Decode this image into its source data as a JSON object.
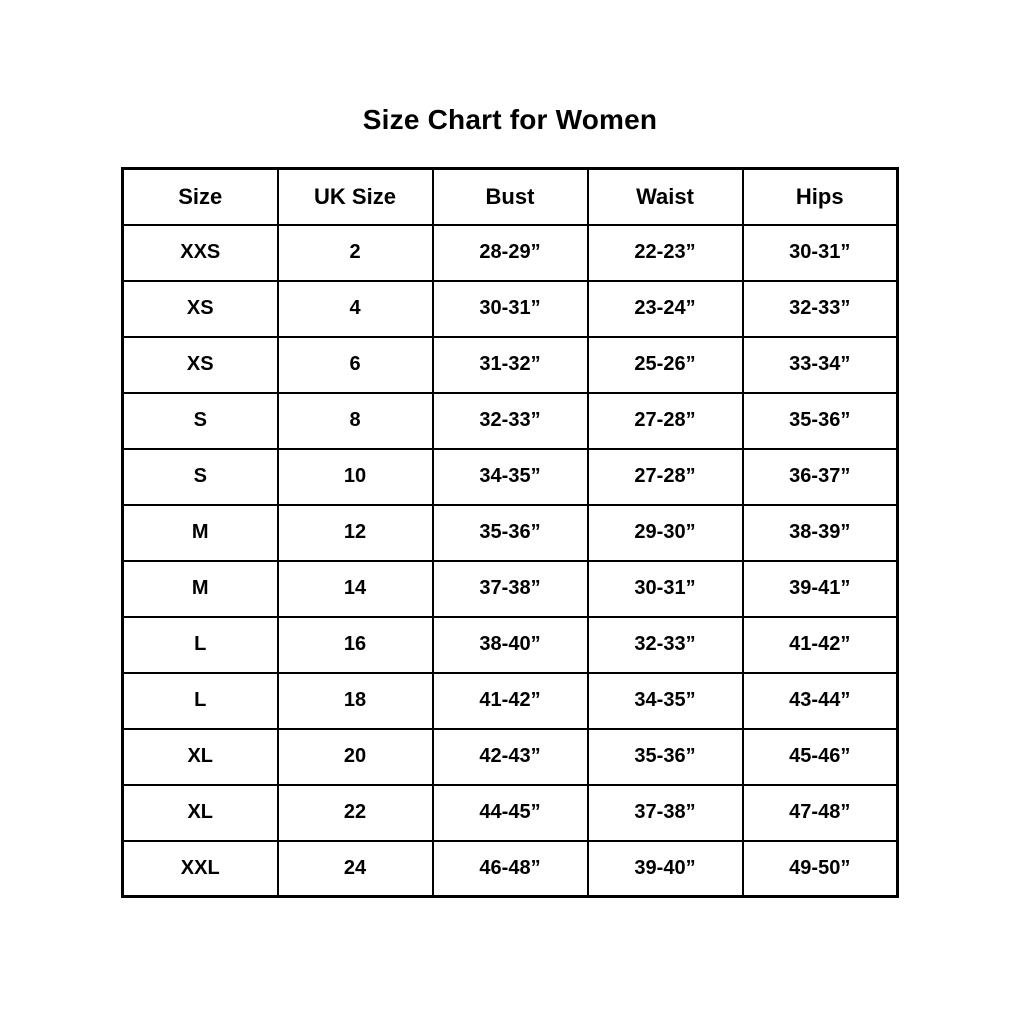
{
  "page": {
    "title": "Size Chart for Women",
    "background_color": "#ffffff",
    "text_color": "#000000",
    "border_color": "#000000"
  },
  "table": {
    "headers": [
      "Size",
      "UK Size",
      "Bust",
      "Waist",
      "Hips"
    ],
    "rows": [
      [
        "XXS",
        "2",
        "28-29”",
        "22-23”",
        "30-31”"
      ],
      [
        "XS",
        "4",
        "30-31”",
        "23-24”",
        "32-33”"
      ],
      [
        "XS",
        "6",
        "31-32”",
        "25-26”",
        "33-34”"
      ],
      [
        "S",
        "8",
        "32-33”",
        "27-28”",
        "35-36”"
      ],
      [
        "S",
        "10",
        "34-35”",
        "27-28”",
        "36-37”"
      ],
      [
        "M",
        "12",
        "35-36”",
        "29-30”",
        "38-39”"
      ],
      [
        "M",
        "14",
        "37-38”",
        "30-31”",
        "39-41”"
      ],
      [
        "L",
        "16",
        "38-40”",
        "32-33”",
        "41-42”"
      ],
      [
        "L",
        "18",
        "41-42”",
        "34-35”",
        "43-44”"
      ],
      [
        "XL",
        "20",
        "42-43”",
        "35-36”",
        "45-46”"
      ],
      [
        "XL",
        "22",
        "44-45”",
        "37-38”",
        "47-48”"
      ],
      [
        "XXL",
        "24",
        "46-48”",
        "39-40”",
        "49-50”"
      ]
    ]
  },
  "chart_data": {
    "type": "table",
    "title": "Size Chart for Women",
    "columns": [
      "Size",
      "UK Size",
      "Bust",
      "Waist",
      "Hips"
    ],
    "rows": [
      {
        "size": "XXS",
        "uk_size": 2,
        "bust": "28-29”",
        "waist": "22-23”",
        "hips": "30-31”"
      },
      {
        "size": "XS",
        "uk_size": 4,
        "bust": "30-31”",
        "waist": "23-24”",
        "hips": "32-33”"
      },
      {
        "size": "XS",
        "uk_size": 6,
        "bust": "31-32”",
        "waist": "25-26”",
        "hips": "33-34”"
      },
      {
        "size": "S",
        "uk_size": 8,
        "bust": "32-33”",
        "waist": "27-28”",
        "hips": "35-36”"
      },
      {
        "size": "S",
        "uk_size": 10,
        "bust": "34-35”",
        "waist": "27-28”",
        "hips": "36-37”"
      },
      {
        "size": "M",
        "uk_size": 12,
        "bust": "35-36”",
        "waist": "29-30”",
        "hips": "38-39”"
      },
      {
        "size": "M",
        "uk_size": 14,
        "bust": "37-38”",
        "waist": "30-31”",
        "hips": "39-41”"
      },
      {
        "size": "L",
        "uk_size": 16,
        "bust": "38-40”",
        "waist": "32-33”",
        "hips": "41-42”"
      },
      {
        "size": "L",
        "uk_size": 18,
        "bust": "41-42”",
        "waist": "34-35”",
        "hips": "43-44”"
      },
      {
        "size": "XL",
        "uk_size": 20,
        "bust": "42-43”",
        "waist": "35-36”",
        "hips": "45-46”"
      },
      {
        "size": "XL",
        "uk_size": 22,
        "bust": "44-45”",
        "waist": "37-38”",
        "hips": "47-48”"
      },
      {
        "size": "XXL",
        "uk_size": 24,
        "bust": "46-48”",
        "waist": "39-40”",
        "hips": "49-50”"
      }
    ]
  }
}
